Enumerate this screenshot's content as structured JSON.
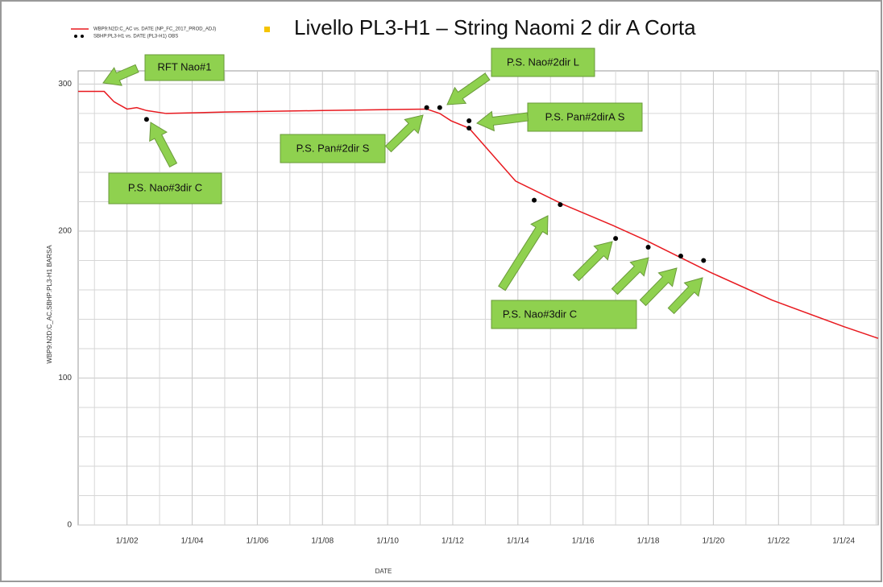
{
  "chart_data": {
    "type": "line",
    "title": "Livello PL3-H1 – String Naomi 2 dir A Corta",
    "x_label": "DATE",
    "y_label": "WBP9:N2D:C_AC,SBHP:PL3-H1  BARSA",
    "xlim": [
      2000.5,
      2025.06
    ],
    "ylim": [
      0,
      309
    ],
    "xticks": [
      {
        "value": 2002,
        "label": "1/1/02"
      },
      {
        "value": 2004,
        "label": "1/1/04"
      },
      {
        "value": 2006,
        "label": "1/1/06"
      },
      {
        "value": 2008,
        "label": "1/1/08"
      },
      {
        "value": 2010,
        "label": "1/1/10"
      },
      {
        "value": 2012,
        "label": "1/1/12"
      },
      {
        "value": 2014,
        "label": "1/1/14"
      },
      {
        "value": 2016,
        "label": "1/1/16"
      },
      {
        "value": 2018,
        "label": "1/1/18"
      },
      {
        "value": 2020,
        "label": "1/1/20"
      },
      {
        "value": 2022,
        "label": "1/1/22"
      },
      {
        "value": 2024,
        "label": "1/1/24"
      }
    ],
    "xminorticks": [
      2001,
      2003,
      2005,
      2007,
      2009,
      2011,
      2013,
      2015,
      2017,
      2019,
      2021,
      2023,
      2025
    ],
    "yticks": [
      0,
      100,
      200,
      300
    ],
    "yminorticks": [
      20,
      40,
      60,
      80,
      120,
      140,
      160,
      180,
      220,
      240,
      260,
      280
    ],
    "grid": true,
    "series": [
      {
        "name": "WBP9:N2D:C_AC  vs.  DATE (NP_FC_2017_PROD_ADJ)",
        "color": "#e8191f",
        "kind": "line",
        "x": [
          2000.5,
          2001.3,
          2001.6,
          2002.0,
          2002.3,
          2002.6,
          2003.2,
          2005,
          2008,
          2011.2,
          2011.6,
          2011.95,
          2012.5,
          2013.93,
          2015.4,
          2016.9,
          2017.9,
          2019.9,
          2021.8,
          2024,
          2025.06
        ],
        "values": [
          295,
          295,
          288,
          283,
          284,
          282,
          280,
          281,
          282,
          283,
          280,
          275,
          270,
          234,
          218,
          204,
          194,
          172,
          153,
          135,
          127
        ]
      },
      {
        "name": "SBHP:PL3-H1  vs.  DATE (PL3-H1) OBS",
        "color": "#000000",
        "kind": "scatter",
        "x": [
          2002.6,
          2011.2,
          2011.6,
          2012.5,
          2012.5,
          2014.5,
          2015.3,
          2017,
          2018,
          2019,
          2019.7
        ],
        "values": [
          276,
          284,
          284,
          275,
          270,
          221,
          218,
          195,
          189,
          183,
          180
        ]
      }
    ],
    "annotations": [
      "RFT Nao#1",
      "P.S. Nao#3dir C",
      "P.S. Pan#2dir S",
      "P.S. Nao#2dir L",
      "P.S. Pan#2dirA S",
      "P.S. Nao#3dir C"
    ]
  }
}
